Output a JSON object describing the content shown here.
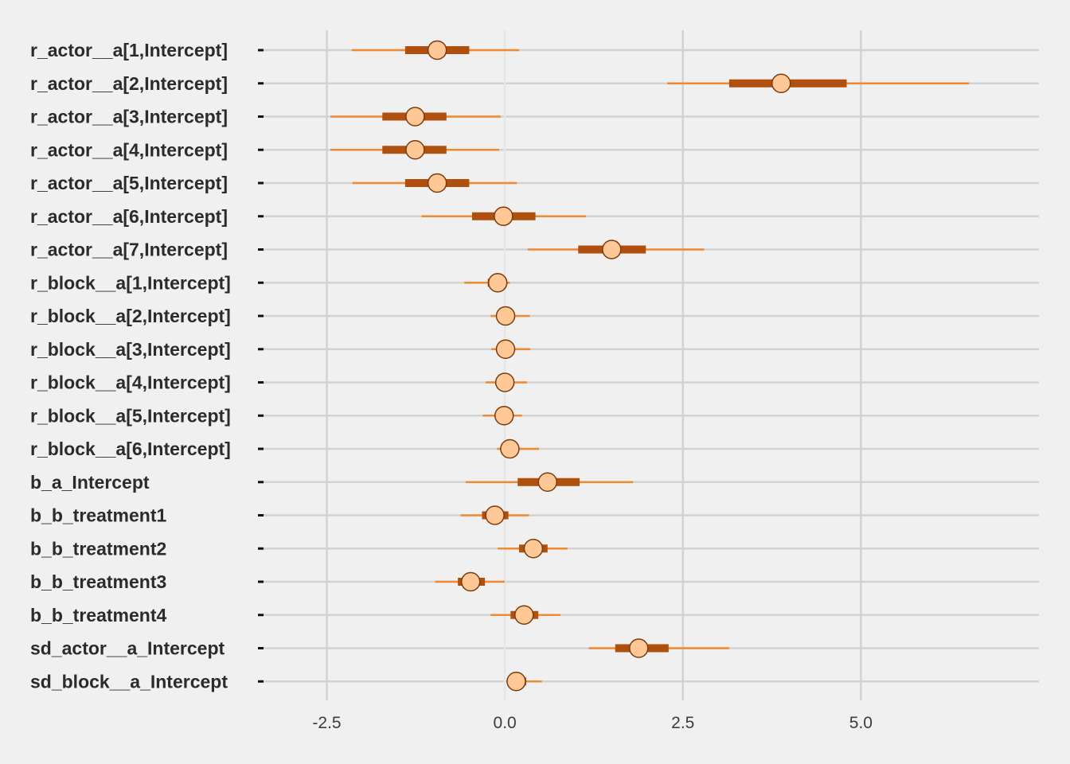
{
  "colors": {
    "background": "#f0f0f0",
    "grid": "#d2d2d2",
    "outer_interval": "#f08a30",
    "inner_interval": "#b0500f",
    "point_fill": "#ffc896",
    "point_stroke": "#7a3a0a",
    "label_text": "#2b2b2b"
  },
  "chart_data": {
    "type": "interval",
    "title": "",
    "xlabel": "",
    "ylabel": "",
    "xlim": [
      -3.4,
      7.5
    ],
    "xticks": [
      -2.5,
      0.0,
      2.5,
      5.0
    ],
    "xtick_labels": [
      "-2.5",
      "0.0",
      "2.5",
      "5.0"
    ],
    "grid": true,
    "parameters": [
      {
        "name": "r_actor__a[1,Intercept]",
        "median": -0.95,
        "inner": [
          -1.4,
          -0.5
        ],
        "outer": [
          -2.15,
          0.2
        ]
      },
      {
        "name": "r_actor__a[2,Intercept]",
        "median": 3.88,
        "inner": [
          3.15,
          4.8
        ],
        "outer": [
          2.28,
          6.52
        ]
      },
      {
        "name": "r_actor__a[3,Intercept]",
        "median": -1.26,
        "inner": [
          -1.72,
          -0.82
        ],
        "outer": [
          -2.45,
          -0.06
        ]
      },
      {
        "name": "r_actor__a[4,Intercept]",
        "median": -1.26,
        "inner": [
          -1.72,
          -0.82
        ],
        "outer": [
          -2.45,
          -0.08
        ]
      },
      {
        "name": "r_actor__a[5,Intercept]",
        "median": -0.95,
        "inner": [
          -1.4,
          -0.5
        ],
        "outer": [
          -2.14,
          0.17
        ]
      },
      {
        "name": "r_actor__a[6,Intercept]",
        "median": -0.02,
        "inner": [
          -0.46,
          0.43
        ],
        "outer": [
          -1.17,
          1.14
        ]
      },
      {
        "name": "r_actor__a[7,Intercept]",
        "median": 1.5,
        "inner": [
          1.03,
          1.98
        ],
        "outer": [
          0.32,
          2.8
        ]
      },
      {
        "name": "r_block__a[1,Intercept]",
        "median": -0.1,
        "inner": [
          -0.24,
          0.02
        ],
        "outer": [
          -0.57,
          0.07
        ]
      },
      {
        "name": "r_block__a[2,Intercept]",
        "median": 0.01,
        "inner": [
          -0.07,
          0.09
        ],
        "outer": [
          -0.2,
          0.35
        ]
      },
      {
        "name": "r_block__a[3,Intercept]",
        "median": 0.01,
        "inner": [
          -0.07,
          0.09
        ],
        "outer": [
          -0.19,
          0.36
        ]
      },
      {
        "name": "r_block__a[4,Intercept]",
        "median": 0.0,
        "inner": [
          -0.08,
          0.08
        ],
        "outer": [
          -0.27,
          0.31
        ]
      },
      {
        "name": "r_block__a[5,Intercept]",
        "median": -0.01,
        "inner": [
          -0.09,
          0.07
        ],
        "outer": [
          -0.31,
          0.24
        ]
      },
      {
        "name": "r_block__a[6,Intercept]",
        "median": 0.07,
        "inner": [
          -0.02,
          0.16
        ],
        "outer": [
          -0.11,
          0.48
        ]
      },
      {
        "name": "b_a_Intercept",
        "median": 0.6,
        "inner": [
          0.18,
          1.05
        ],
        "outer": [
          -0.55,
          1.8
        ]
      },
      {
        "name": "b_b_treatment1",
        "median": -0.14,
        "inner": [
          -0.32,
          0.05
        ],
        "outer": [
          -0.62,
          0.34
        ]
      },
      {
        "name": "b_b_treatment2",
        "median": 0.4,
        "inner": [
          0.2,
          0.6
        ],
        "outer": [
          -0.1,
          0.88
        ]
      },
      {
        "name": "b_b_treatment3",
        "median": -0.48,
        "inner": [
          -0.66,
          -0.28
        ],
        "outer": [
          -0.98,
          0.0
        ]
      },
      {
        "name": "b_b_treatment4",
        "median": 0.27,
        "inner": [
          0.08,
          0.47
        ],
        "outer": [
          -0.2,
          0.78
        ]
      },
      {
        "name": "sd_actor__a_Intercept",
        "median": 1.88,
        "inner": [
          1.55,
          2.3
        ],
        "outer": [
          1.18,
          3.15
        ]
      },
      {
        "name": "sd_block__a_Intercept",
        "median": 0.16,
        "inner": [
          0.06,
          0.3
        ],
        "outer": [
          0.02,
          0.52
        ]
      }
    ]
  }
}
